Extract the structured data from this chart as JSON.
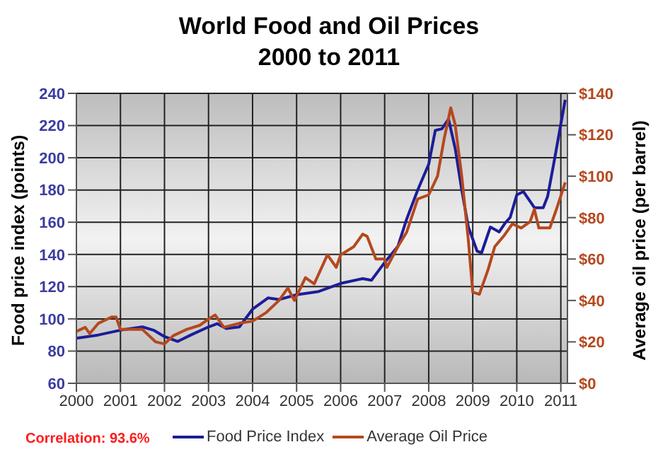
{
  "chart_data": {
    "type": "line",
    "title": "World Food and Oil Prices",
    "subtitle": "2000 to 2011",
    "ylabel": "Food price index (points)",
    "y2label": "Average oil price (per barrel)",
    "annotations": [
      "Correlation: 93.6%"
    ],
    "xlim": [
      2000,
      2011.15
    ],
    "xticks": [
      2000,
      2001,
      2002,
      2003,
      2004,
      2005,
      2006,
      2007,
      2008,
      2009,
      2010,
      2011
    ],
    "ylim": [
      60,
      240
    ],
    "yticks": [
      60,
      80,
      100,
      120,
      140,
      160,
      180,
      200,
      220,
      240
    ],
    "y2lim": [
      0,
      140
    ],
    "y2ticks": [
      {
        "value": 0,
        "label": "$0"
      },
      {
        "value": 20,
        "label": "$20"
      },
      {
        "value": 40,
        "label": "$40"
      },
      {
        "value": 60,
        "label": "$60"
      },
      {
        "value": 80,
        "label": "$80"
      },
      {
        "value": 100,
        "label": "$100"
      },
      {
        "value": 120,
        "label": "$120"
      },
      {
        "value": 140,
        "label": "$140"
      }
    ],
    "grid": true,
    "legend": "bottom",
    "marker": "none",
    "line_style": "solid",
    "series": [
      {
        "name": "Food Price Index",
        "color": "#1c1c9a",
        "x": [
          2000,
          2000.5,
          2001,
          2001.5,
          2001.75,
          2002,
          2002.3,
          2002.6,
          2003,
          2003.2,
          2003.4,
          2003.7,
          2004,
          2004.2,
          2004.35,
          2004.6,
          2005,
          2005.5,
          2006,
          2006.5,
          2006.7,
          2007,
          2007.3,
          2007.5,
          2007.75,
          2008,
          2008.15,
          2008.3,
          2008.45,
          2008.6,
          2008.75,
          2008.9,
          2009.1,
          2009.2,
          2009.4,
          2009.6,
          2009.75,
          2009.85,
          2010,
          2010.15,
          2010.4,
          2010.6,
          2010.7,
          2010.85,
          2011,
          2011.1
        ],
        "values": [
          88,
          90,
          93,
          95,
          93,
          89,
          86,
          90,
          95,
          97,
          94,
          95,
          106,
          110,
          113,
          112,
          115,
          117,
          122,
          125,
          124,
          135,
          145,
          162,
          180,
          196,
          217,
          218,
          224,
          206,
          180,
          157,
          142,
          141,
          157,
          154,
          160,
          163,
          177,
          179,
          169,
          169,
          176,
          198,
          221,
          236
        ]
      },
      {
        "name": "Average Oil Price",
        "color": "#b5481e",
        "axis": "y2",
        "x": [
          2000,
          2000.2,
          2000.3,
          2000.5,
          2000.8,
          2000.9,
          2001,
          2001.5,
          2001.8,
          2002,
          2002.2,
          2002.5,
          2002.8,
          2003,
          2003.15,
          2003.35,
          2003.7,
          2004,
          2004.3,
          2004.6,
          2004.8,
          2004.95,
          2005.2,
          2005.4,
          2005.7,
          2005.9,
          2006,
          2006.3,
          2006.5,
          2006.6,
          2006.8,
          2007,
          2007.05,
          2007.3,
          2007.5,
          2007.75,
          2008,
          2008.2,
          2008.35,
          2008.5,
          2008.6,
          2008.75,
          2008.9,
          2009,
          2009.15,
          2009.35,
          2009.5,
          2009.7,
          2009.9,
          2010.1,
          2010.3,
          2010.4,
          2010.5,
          2010.75,
          2010.9,
          2011.1
        ],
        "values": [
          25,
          27,
          24,
          29,
          32,
          32,
          26,
          26,
          20,
          19,
          23,
          26,
          28,
          31,
          33,
          27,
          29,
          30,
          34,
          40,
          46,
          40,
          51,
          48,
          62,
          56,
          62,
          66,
          72,
          71,
          60,
          60,
          56,
          66,
          73,
          89,
          91,
          100,
          118,
          133,
          125,
          100,
          69,
          44,
          43,
          55,
          66,
          71,
          77,
          75,
          78,
          84,
          75,
          75,
          84,
          97
        ]
      }
    ]
  }
}
